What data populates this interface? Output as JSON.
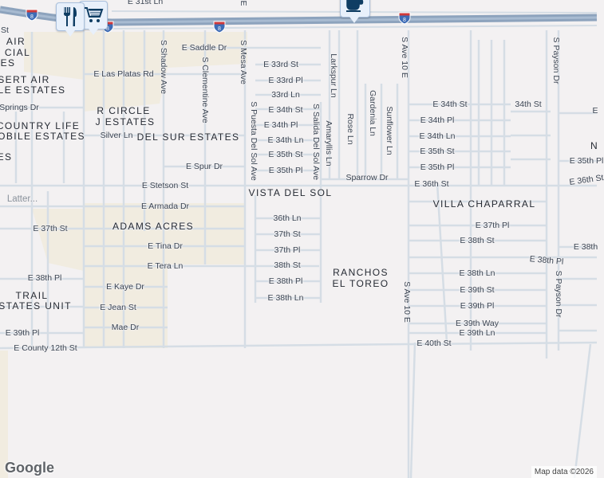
{
  "map": {
    "colors": {
      "background": "#f3f1f2",
      "street": "#d5dde5",
      "freeway": "#8da3bd",
      "tan_area": "#f1ece0",
      "label": "#3c4654"
    },
    "highway_shield": "8",
    "markers": [
      {
        "icon": "restaurant-icon",
        "category": "restaurant"
      },
      {
        "icon": "shopping-cart-icon",
        "category": "shopping"
      },
      {
        "icon": "coffee-icon",
        "category": "cafe"
      }
    ],
    "street_labels": [
      "E 31st Ln",
      "E Saddle Dr",
      "E 33rd St",
      "E 33rd Pl",
      "33rd Ln",
      "E 34th St",
      "E 34th Pl",
      "E 34th Ln",
      "E 35th St",
      "E 35th Pl",
      "E Las Platas Rd",
      "Springs Dr",
      "Silver Ln",
      "E Spur Dr",
      "E Stetson St",
      "Latter...",
      "E Armada Dr",
      "E 37th St",
      "36th Ln",
      "37th St",
      "37th Pl",
      "38th St",
      "E 38th Pl",
      "E 38th Ln",
      "E Tina Dr",
      "E Tera Ln",
      "E 38th Pl",
      "E Kaye Dr",
      "E Jean St",
      "Mae Dr",
      "E 39th Pl",
      "E County 12th St",
      "Sparrow Dr",
      "E 34th St",
      "34th St",
      "E 34th Pl",
      "E 34th Ln",
      "E 35th St",
      "E 35th Pl",
      "E 36th St",
      "E 35th Pl",
      "E 36th St",
      "E 37th Pl",
      "E 38th St",
      "E 38th Pl",
      "E 38th Ln",
      "E 39th St",
      "E 39th Pl",
      "E 39th Way",
      "E 39th Ln",
      "E 40th St",
      "E 38th",
      "E",
      "St"
    ],
    "vertical_labels": [
      "S Shadow Ave",
      "S Clementine Ave",
      "S Mesa Ave",
      "S Puesta Del Sol Ave",
      "S Salida Del Sol Ave",
      "Amaryllis Ln",
      "Larkspur Ln",
      "Rose Ln",
      "Gardenia Ln",
      "Sunflower Ln",
      "S Ave 10 E",
      "S Ave 10 E",
      "S Payson Dr",
      "S Payson Dr",
      "E"
    ],
    "area_labels": [
      "AIR",
      "CIAL",
      "ES",
      "SERT AIR",
      "LE ESTATES",
      "R CIRCLE",
      "J ESTATES",
      "COUNTRY LIFE",
      "OBILE ESTATES",
      "DEL SUR ESTATES",
      "ES",
      "VISTA DEL SOL",
      "VILLA CHAPARRAL",
      "ADAMS ACRES",
      "TRAIL",
      "STATES UNIT",
      "RANCHOS",
      "EL TOREO",
      "N"
    ],
    "logo": "Google",
    "attribution": "Map data ©2026"
  }
}
